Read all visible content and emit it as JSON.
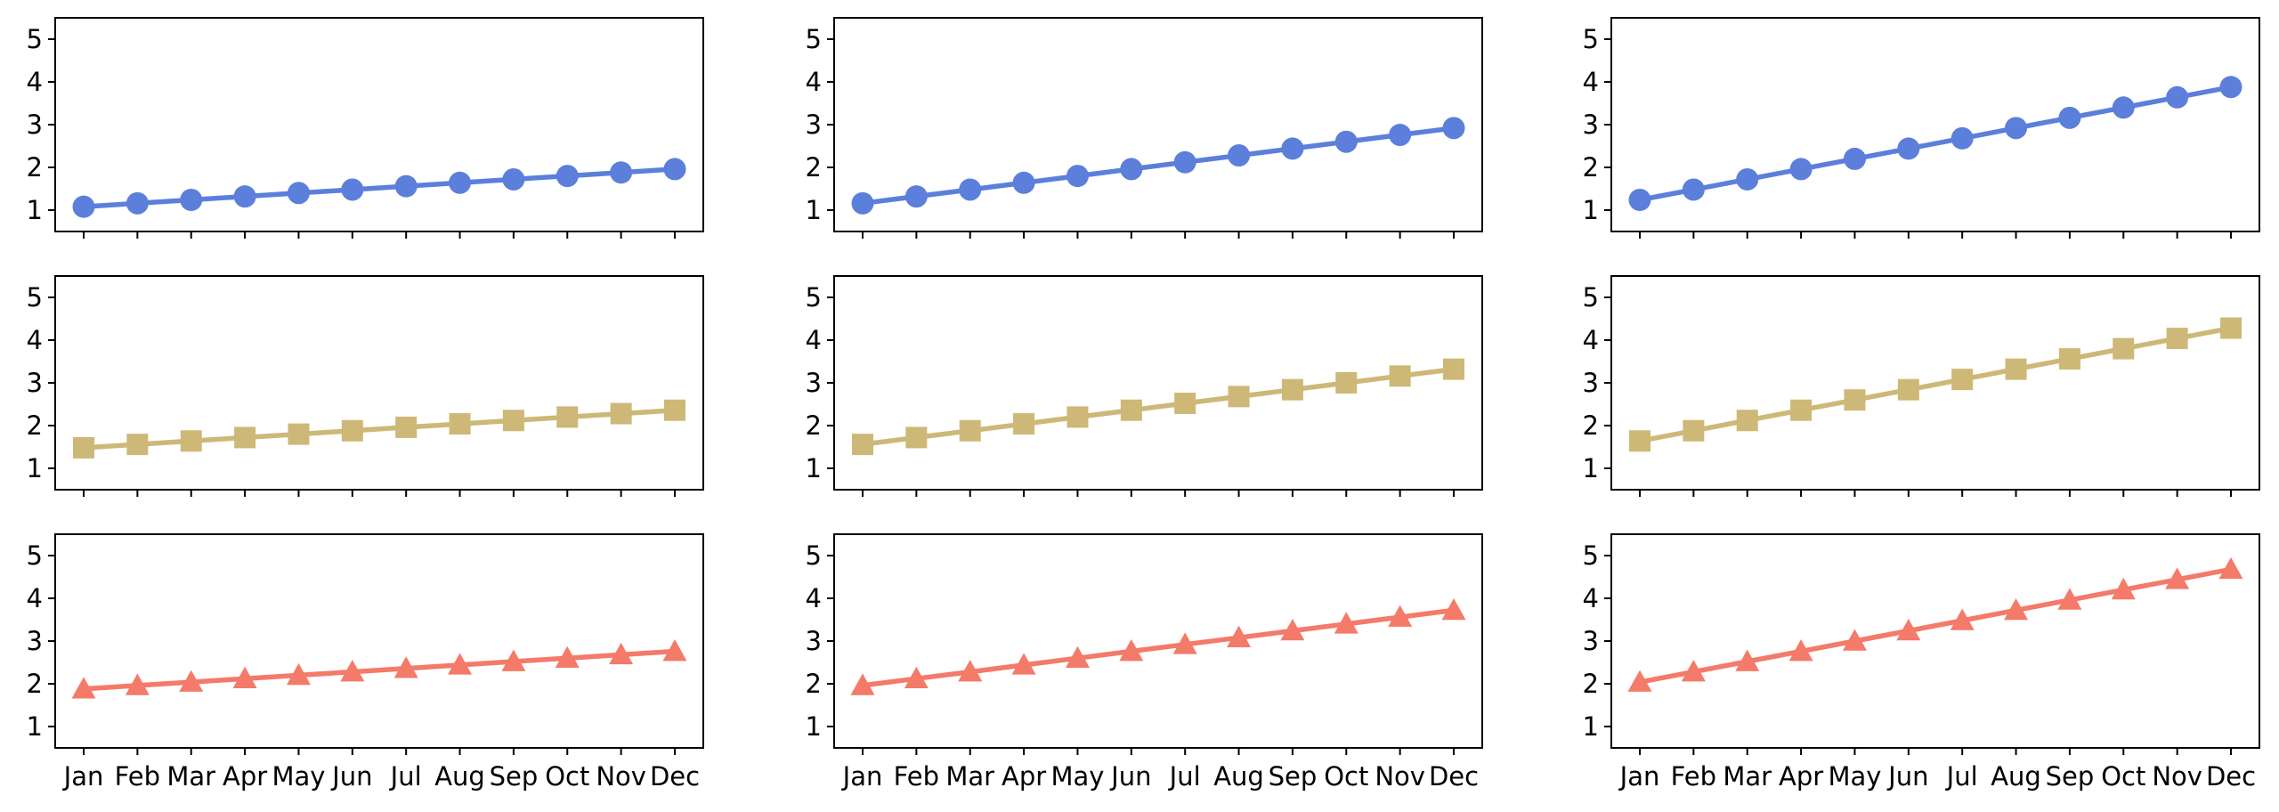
{
  "chart_data": {
    "type": "line",
    "layout": {
      "rows": 3,
      "columns": 3,
      "shared_x": true
    },
    "x": [
      "Jan",
      "Feb",
      "Mar",
      "Apr",
      "May",
      "Jun",
      "Jul",
      "Aug",
      "Sep",
      "Oct",
      "Nov",
      "Dec"
    ],
    "ylim": [
      0.5,
      5.5
    ],
    "yticks": [
      1,
      2,
      3,
      4,
      5
    ],
    "grid": false,
    "colors": {
      "circle": "#5b7fdb",
      "square": "#cdb877",
      "triangle": "#f47a69"
    },
    "panels": [
      {
        "row": 1,
        "col": 1,
        "marker": "circle",
        "color": "#5b7fdb",
        "values": [
          1.08,
          1.16,
          1.24,
          1.32,
          1.4,
          1.48,
          1.56,
          1.64,
          1.72,
          1.8,
          1.88,
          1.96
        ]
      },
      {
        "row": 1,
        "col": 2,
        "marker": "circle",
        "color": "#5b7fdb",
        "values": [
          1.16,
          1.32,
          1.48,
          1.64,
          1.8,
          1.96,
          2.12,
          2.28,
          2.44,
          2.6,
          2.76,
          2.92
        ]
      },
      {
        "row": 1,
        "col": 3,
        "marker": "circle",
        "color": "#5b7fdb",
        "values": [
          1.24,
          1.48,
          1.72,
          1.96,
          2.2,
          2.44,
          2.68,
          2.92,
          3.16,
          3.4,
          3.64,
          3.88
        ]
      },
      {
        "row": 2,
        "col": 1,
        "marker": "square",
        "color": "#cdb877",
        "values": [
          1.48,
          1.56,
          1.64,
          1.72,
          1.8,
          1.88,
          1.96,
          2.04,
          2.12,
          2.2,
          2.28,
          2.36
        ]
      },
      {
        "row": 2,
        "col": 2,
        "marker": "square",
        "color": "#cdb877",
        "values": [
          1.56,
          1.72,
          1.88,
          2.04,
          2.2,
          2.36,
          2.52,
          2.68,
          2.84,
          3.0,
          3.16,
          3.32
        ]
      },
      {
        "row": 2,
        "col": 3,
        "marker": "square",
        "color": "#cdb877",
        "values": [
          1.64,
          1.88,
          2.12,
          2.36,
          2.6,
          2.84,
          3.08,
          3.32,
          3.56,
          3.8,
          4.04,
          4.28
        ]
      },
      {
        "row": 3,
        "col": 1,
        "marker": "triangle",
        "color": "#f47a69",
        "values": [
          1.88,
          1.96,
          2.04,
          2.12,
          2.2,
          2.28,
          2.36,
          2.44,
          2.52,
          2.6,
          2.68,
          2.76
        ]
      },
      {
        "row": 3,
        "col": 2,
        "marker": "triangle",
        "color": "#f47a69",
        "values": [
          1.96,
          2.12,
          2.28,
          2.44,
          2.6,
          2.76,
          2.92,
          3.08,
          3.24,
          3.4,
          3.56,
          3.72
        ]
      },
      {
        "row": 3,
        "col": 3,
        "marker": "triangle",
        "color": "#f47a69",
        "values": [
          2.04,
          2.28,
          2.52,
          2.76,
          3.0,
          3.24,
          3.48,
          3.72,
          3.96,
          4.2,
          4.44,
          4.68
        ]
      }
    ]
  }
}
